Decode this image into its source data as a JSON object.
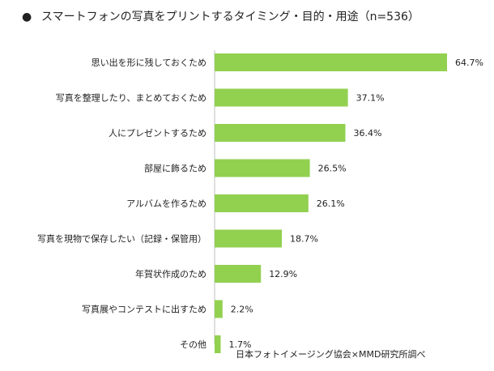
{
  "chart_data": {
    "type": "bar",
    "orientation": "horizontal",
    "title": "スマートフォンの写真をプリントするタイミング・目的・用途（n=536）",
    "title_bullet": "●",
    "categories": [
      "思い出を形に残しておくため",
      "写真を整理したり、まとめておくため",
      "人にプレゼントするため",
      "部屋に飾るため",
      "アルバムを作るため",
      "写真を現物で保存したい（記録・保管用）",
      "年賀状作成のため",
      "写真展やコンテストに出すため",
      "その他"
    ],
    "values": [
      64.7,
      37.1,
      36.4,
      26.5,
      26.1,
      18.7,
      12.9,
      2.2,
      1.7
    ],
    "value_labels": [
      "64.7%",
      "37.1%",
      "36.4%",
      "26.5%",
      "26.1%",
      "18.7%",
      "12.9%",
      "2.2%",
      "1.7%"
    ],
    "unit": "%",
    "xlim": [
      0,
      70
    ],
    "xlabel": "",
    "ylabel": "",
    "grid": false,
    "bar_color": "#92d050",
    "axis_color": "#bfbfbf",
    "source": "日本フォトイメージング協会×MMD研究所調べ"
  }
}
